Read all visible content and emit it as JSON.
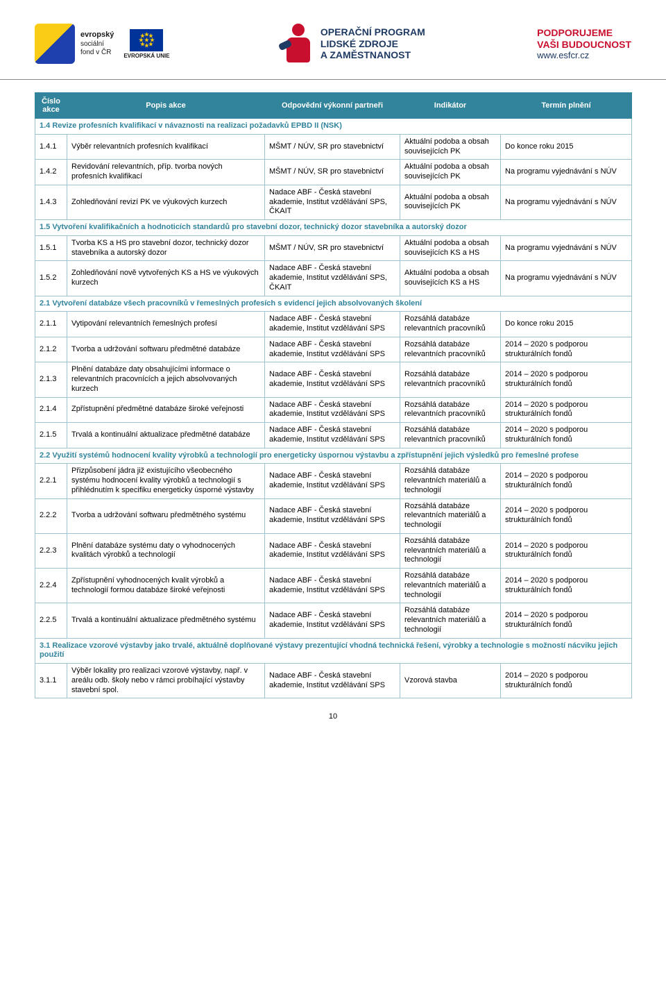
{
  "logos": {
    "esf_bold": "evropský",
    "esf_l2": "sociální",
    "esf_l3": "fond v ČR",
    "eu_label": "EVROPSKÁ UNIE",
    "op_l1": "OPERAČNÍ PROGRAM",
    "op_l2": "LIDSKÉ ZDROJE",
    "op_l3": "A ZAMĚSTNANOST",
    "promo_l1": "PODPORUJEME",
    "promo_l2": "VAŠI BUDOUCNOST",
    "promo_url": "www.esfcr.cz"
  },
  "table": {
    "head": {
      "c1": "Číslo akce",
      "c2": "Popis akce",
      "c3": "Odpovědní výkonní partneři",
      "c4": "Indikátor",
      "c5": "Termín plnění"
    },
    "sections": [
      {
        "title": "1.4 Revize profesních kvalifikací v návaznosti na realizaci požadavků EPBD II (NSK)",
        "rows": [
          {
            "n": "1.4.1",
            "p": "Výběr relevantních profesních kvalifikací",
            "o": "MŠMT / NÚV, SR pro stavebnictví",
            "i": "Aktuální podoba a obsah souvisejících PK",
            "t": "Do konce roku 2015"
          },
          {
            "n": "1.4.2",
            "p": "Revidování relevantních, příp. tvorba nových profesních kvalifikací",
            "o": "MŠMT / NÚV, SR pro stavebnictví",
            "i": "Aktuální podoba a obsah souvisejících PK",
            "t": "Na programu vyjednávání s NÚV"
          },
          {
            "n": "1.4.3",
            "p": "Zohledňování revizí PK ve výukových kurzech",
            "o": "Nadace ABF - Česká stavební akademie, Institut vzdělávání SPS, ČKAIT",
            "i": "Aktuální podoba a obsah souvisejících PK",
            "t": "Na programu vyjednávání s NÚV"
          }
        ]
      },
      {
        "title": "1.5 Vytvoření kvalifikačních a hodnoticích standardů pro stavební dozor, technický dozor stavebníka a autorský dozor",
        "rows": [
          {
            "n": "1.5.1",
            "p": "Tvorba KS a HS pro stavební dozor, technický dozor stavebníka a autorský dozor",
            "o": "MŠMT / NÚV, SR pro stavebnictví",
            "i": "Aktuální podoba a obsah souvisejících KS a HS",
            "t": "Na programu vyjednávání s NÚV"
          },
          {
            "n": "1.5.2",
            "p": "Zohledňování nově vytvořených KS a HS ve výukových kurzech",
            "o": "Nadace ABF - Česká stavební akademie, Institut vzdělávání SPS, ČKAIT",
            "i": "Aktuální podoba a obsah souvisejících KS a HS",
            "t": "Na programu vyjednávání s NÚV"
          }
        ]
      },
      {
        "title": "2.1 Vytvoření databáze všech pracovníků v řemeslných profesích s evidencí jejich absolvovaných školení",
        "rows": [
          {
            "n": "2.1.1",
            "p": "Vytipování relevantních řemeslných profesí",
            "o": "Nadace ABF - Česká stavební akademie, Institut vzdělávání SPS",
            "i": "Rozsáhlá databáze relevantních pracovníků",
            "t": "Do konce roku 2015"
          },
          {
            "n": "2.1.2",
            "p": "Tvorba a udržování softwaru předmětné databáze",
            "o": "Nadace ABF - Česká stavební akademie, Institut vzdělávání SPS",
            "i": "Rozsáhlá databáze relevantních pracovníků",
            "t": "2014 – 2020 s podporou strukturálních fondů"
          },
          {
            "n": "2.1.3",
            "p": "Plnění databáze daty obsahujícími informace o relevantních pracovnících a jejich absolvovaných kurzech",
            "o": "Nadace ABF - Česká stavební akademie, Institut vzdělávání SPS",
            "i": "Rozsáhlá databáze relevantních pracovníků",
            "t": "2014 – 2020 s podporou strukturálních fondů"
          },
          {
            "n": "2.1.4",
            "p": "Zpřístupnění předmětné databáze široké veřejnosti",
            "o": "Nadace ABF - Česká stavební akademie, Institut vzdělávání SPS",
            "i": "Rozsáhlá databáze relevantních pracovníků",
            "t": "2014 – 2020 s podporou strukturálních fondů"
          },
          {
            "n": "2.1.5",
            "p": "Trvalá a kontinuální aktualizace předmětné databáze",
            "o": "Nadace ABF - Česká stavební akademie, Institut vzdělávání SPS",
            "i": "Rozsáhlá databáze relevantních pracovníků",
            "t": "2014 – 2020 s podporou strukturálních fondů"
          }
        ]
      },
      {
        "title": "2.2 Využití systémů hodnocení kvality výrobků a technologií pro energeticky úspornou výstavbu a zpřístupnění jejich výsledků pro řemeslné profese",
        "rows": [
          {
            "n": "2.2.1",
            "p": "Přizpůsobení jádra již existujícího všeobecného systému hodnocení kvality výrobků a technologií s přihlédnutím k specifiku energeticky úsporné výstavby",
            "o": "Nadace ABF - Česká stavební akademie, Institut vzdělávání SPS",
            "i": "Rozsáhlá databáze relevantních materiálů a technologií",
            "t": "2014 – 2020 s podporou strukturálních fondů"
          },
          {
            "n": "2.2.2",
            "p": "Tvorba a udržování softwaru předmětného systému",
            "o": "Nadace ABF - Česká stavební akademie, Institut vzdělávání SPS",
            "i": "Rozsáhlá databáze relevantních materiálů a technologií",
            "t": "2014 – 2020 s podporou strukturálních fondů"
          },
          {
            "n": "2.2.3",
            "p": "Plnění databáze systému daty o vyhodnocených kvalitách výrobků a technologií",
            "o": "Nadace ABF - Česká stavební akademie, Institut vzdělávání SPS",
            "i": "Rozsáhlá databáze relevantních materiálů a technologií",
            "t": "2014 – 2020 s podporou strukturálních fondů"
          },
          {
            "n": "2.2.4",
            "p": "Zpřístupnění vyhodnocených kvalit výrobků a technologií formou databáze široké veřejnosti",
            "o": "Nadace ABF - Česká stavební akademie, Institut vzdělávání SPS",
            "i": "Rozsáhlá databáze relevantních materiálů a technologií",
            "t": "2014 – 2020 s podporou strukturálních fondů"
          },
          {
            "n": "2.2.5",
            "p": "Trvalá a kontinuální aktualizace předmětného systému",
            "o": "Nadace ABF - Česká stavební akademie, Institut vzdělávání SPS",
            "i": "Rozsáhlá databáze relevantních materiálů a technologií",
            "t": "2014 – 2020 s podporou strukturálních fondů"
          }
        ]
      },
      {
        "title": "3.1 Realizace vzorové výstavby jako trvalé, aktuálně doplňované výstavy prezentující vhodná technická řešení, výrobky a technologie s možností nácviku jejich použití",
        "rows": [
          {
            "n": "3.1.1",
            "p": "Výběr lokality pro realizaci vzorové výstavby, např. v areálu odb. školy nebo v rámci probíhající výstavby stavební spol.",
            "o": "Nadace ABF - Česká stavební akademie, Institut vzdělávání SPS",
            "i": "Vzorová stavba",
            "t": "2014 – 2020 s podporou strukturálních fondů"
          }
        ]
      }
    ]
  },
  "page_num": "10",
  "colors": {
    "header_bg": "#31849b",
    "header_fg": "#ffffff",
    "border": "#9cc3ce",
    "section_fg": "#31849b"
  }
}
